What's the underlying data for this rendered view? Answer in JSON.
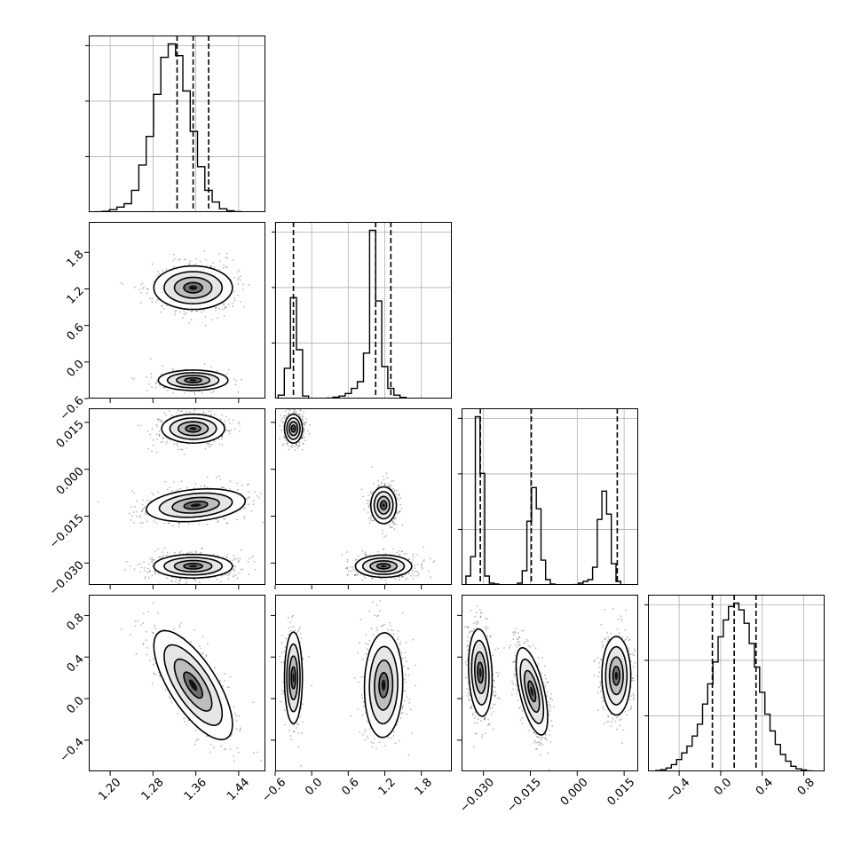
{
  "chart_data": {
    "type": "corner",
    "parameters": [
      {
        "ticks": [
          1.2,
          1.28,
          1.36,
          1.44
        ],
        "tick_labels": [
          "1.20",
          "1.28",
          "1.36",
          "1.44"
        ],
        "range": [
          1.16,
          1.49
        ]
      },
      {
        "ticks": [
          -0.6,
          0.0,
          0.6,
          1.2,
          1.8
        ],
        "tick_labels": [
          "−0.6",
          "0.0",
          "0.6",
          "1.2",
          "1.8"
        ],
        "range": [
          -0.6,
          2.3
        ]
      },
      {
        "ticks": [
          -0.03,
          -0.015,
          0.0,
          0.015
        ],
        "tick_labels": [
          "−0.030",
          "−0.015",
          "0.000",
          "0.015"
        ],
        "range": [
          -0.037,
          0.0195
        ]
      },
      {
        "ticks": [
          -0.4,
          0.0,
          0.4,
          0.8
        ],
        "tick_labels": [
          "−0.4",
          "0.0",
          "0.4",
          "0.8"
        ],
        "range": [
          -0.7,
          1.0
        ]
      }
    ],
    "histograms": [
      {
        "param": 0,
        "bins": [
          1.1714,
          1.1851,
          1.1988,
          1.2125,
          1.2262,
          1.2399,
          1.2536,
          1.2673,
          1.281,
          1.2947,
          1.3084,
          1.3221,
          1.3358,
          1.3495,
          1.3632,
          1.3769,
          1.3906,
          1.4043,
          1.418,
          1.4317,
          1.4454,
          1.4591
        ],
        "counts": [
          0.2,
          0.5,
          1.5,
          3,
          5,
          13,
          28,
          45,
          70,
          92,
          100,
          93,
          72,
          48,
          27,
          13,
          6,
          2,
          0.8,
          0.3,
          0.1
        ],
        "quantiles": [
          1.325,
          1.355,
          1.384
        ]
      },
      {
        "param": 1,
        "bins": [
          -0.55,
          -0.45,
          -0.35,
          -0.25,
          -0.15,
          -0.05,
          0.05,
          0.15,
          0.25,
          0.35,
          0.45,
          0.55,
          0.65,
          0.75,
          0.85,
          0.95,
          1.05,
          1.15,
          1.25,
          1.35,
          1.45,
          1.55,
          1.65,
          1.75,
          1.85,
          1.95
        ],
        "counts": [
          2,
          18,
          60,
          29,
          1.5,
          0.1,
          0,
          0.1,
          0.3,
          0.8,
          1.5,
          3,
          6,
          10,
          27,
          100,
          58,
          19,
          6,
          2,
          0.7,
          0,
          0,
          0,
          0
        ],
        "quantiles": [
          -0.3,
          1.05,
          1.3
        ]
      },
      {
        "param": 2,
        "bins": [
          -0.0356,
          -0.0341,
          -0.0326,
          -0.0311,
          -0.0296,
          -0.0281,
          -0.0266,
          -0.0251,
          -0.0236,
          -0.0221,
          -0.0206,
          -0.0191,
          -0.0176,
          -0.0161,
          -0.0146,
          -0.0131,
          -0.0116,
          -0.0101,
          -0.0086,
          -0.0071,
          -0.0056,
          -0.0041,
          -0.0026,
          -0.0011,
          0.0004,
          0.0019,
          0.0034,
          0.0049,
          0.0064,
          0.0079,
          0.0094,
          0.0109,
          0.0124,
          0.0139,
          0.0154,
          0.0169,
          0.0184
        ],
        "counts": [
          5,
          16,
          95,
          63,
          5,
          1,
          0.5,
          0,
          0,
          0,
          0,
          1,
          8,
          36,
          55,
          43,
          14,
          3,
          0.5,
          0,
          0,
          0,
          0,
          0.2,
          1,
          2,
          3,
          10,
          37,
          53,
          40,
          12,
          2,
          0,
          0,
          0
        ],
        "quantiles": [
          -0.031,
          -0.0147,
          0.0128
        ]
      },
      {
        "param": 3,
        "bins": [
          -0.625,
          -0.575,
          -0.525,
          -0.475,
          -0.425,
          -0.375,
          -0.325,
          -0.275,
          -0.225,
          -0.175,
          -0.125,
          -0.075,
          -0.025,
          0.025,
          0.075,
          0.125,
          0.175,
          0.225,
          0.275,
          0.325,
          0.375,
          0.425,
          0.475,
          0.525,
          0.575,
          0.625,
          0.675,
          0.725,
          0.775,
          0.825,
          0.875
        ],
        "counts": [
          0.5,
          1,
          2,
          4,
          7,
          11,
          15,
          21,
          28,
          40,
          52,
          65,
          80,
          90,
          98,
          100,
          96,
          88,
          76,
          62,
          47,
          34,
          24,
          16,
          10,
          6,
          3,
          1.5,
          0.8,
          0.3
        ],
        "quantiles": [
          -0.08,
          0.13,
          0.34
        ]
      }
    ],
    "joint_modes": [
      {
        "x": 0,
        "y": 1,
        "modes": [
          {
            "cx": 1.355,
            "cy": 1.22,
            "sx": 0.035,
            "sy": 0.17,
            "rho": 0.0,
            "w": 1.0
          },
          {
            "cx": 1.355,
            "cy": -0.3,
            "sx": 0.031,
            "sy": 0.08,
            "rho": 0.0,
            "w": 0.45
          }
        ]
      },
      {
        "x": 0,
        "y": 2,
        "modes": [
          {
            "cx": 1.355,
            "cy": 0.013,
            "sx": 0.028,
            "sy": 0.0022,
            "rho": 0.0,
            "w": 1.0
          },
          {
            "cx": 1.36,
            "cy": -0.0115,
            "sx": 0.044,
            "sy": 0.0025,
            "rho": 0.25,
            "w": 1.0
          },
          {
            "cx": 1.355,
            "cy": -0.031,
            "sx": 0.035,
            "sy": 0.0018,
            "rho": 0.0,
            "w": 1.0
          }
        ]
      },
      {
        "x": 0,
        "y": 3,
        "modes": [
          {
            "cx": 1.355,
            "cy": 0.13,
            "sx": 0.035,
            "sy": 0.25,
            "rho": -0.72,
            "w": 1.0
          }
        ]
      },
      {
        "x": 1,
        "y": 2,
        "modes": [
          {
            "cx": -0.3,
            "cy": 0.013,
            "sx": 0.07,
            "sy": 0.0022,
            "rho": 0.0,
            "w": 1.0
          },
          {
            "cx": 1.18,
            "cy": -0.0115,
            "sx": 0.1,
            "sy": 0.0028,
            "rho": 0.0,
            "w": 1.0
          },
          {
            "cx": 1.18,
            "cy": -0.031,
            "sx": 0.22,
            "sy": 0.0017,
            "rho": 0.0,
            "w": 1.0
          }
        ]
      },
      {
        "x": 1,
        "y": 3,
        "modes": [
          {
            "cx": -0.3,
            "cy": 0.2,
            "sx": 0.07,
            "sy": 0.21,
            "rho": 0.0,
            "w": 0.7
          },
          {
            "cx": 1.18,
            "cy": 0.13,
            "sx": 0.15,
            "sy": 0.24,
            "rho": 0.05,
            "w": 1.0
          }
        ]
      },
      {
        "x": 2,
        "y": 3,
        "modes": [
          {
            "cx": -0.031,
            "cy": 0.25,
            "sx": 0.0018,
            "sy": 0.2,
            "rho": -0.15,
            "w": 1.0
          },
          {
            "cx": -0.0145,
            "cy": 0.07,
            "sx": 0.0024,
            "sy": 0.2,
            "rho": -0.6,
            "w": 1.0
          },
          {
            "cx": 0.0125,
            "cy": 0.22,
            "sx": 0.0022,
            "sy": 0.18,
            "rho": 0.0,
            "w": 1.0
          }
        ]
      }
    ]
  }
}
